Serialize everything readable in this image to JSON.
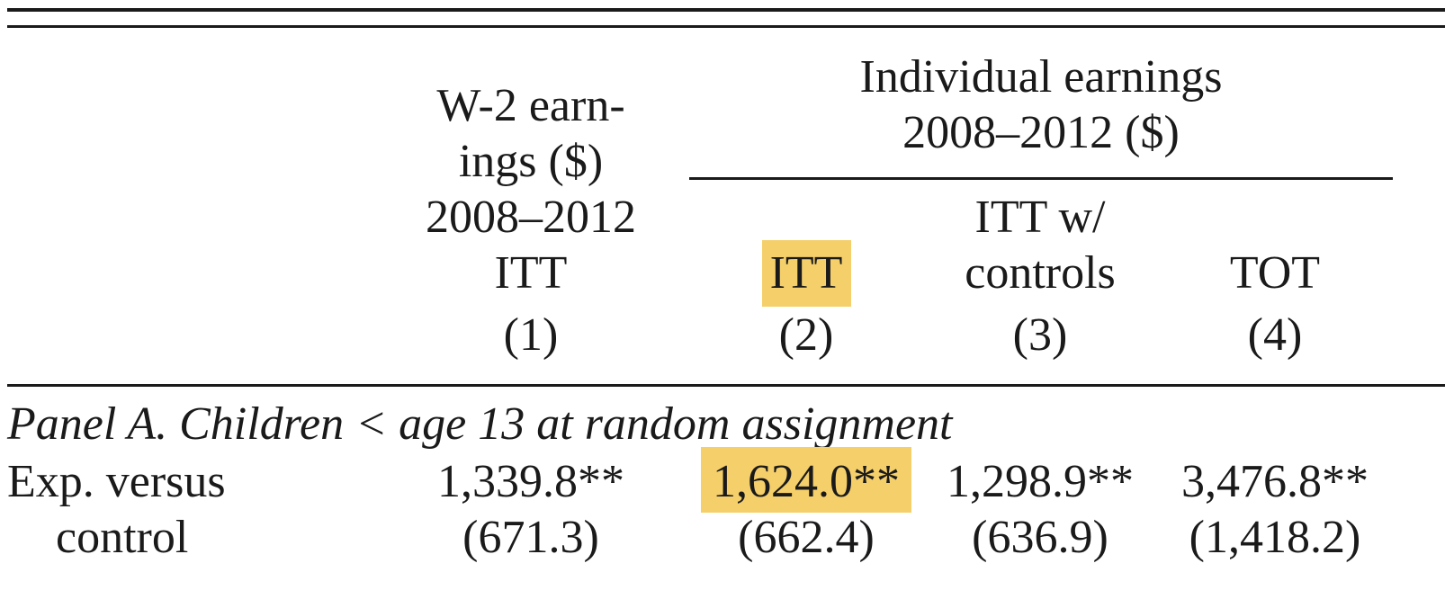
{
  "header": {
    "col1": {
      "lines": [
        "W-2 earn-",
        "ings ($)",
        "2008–2012",
        "ITT"
      ],
      "number": "(1)"
    },
    "group": {
      "line1": "Individual earnings",
      "line2": "2008–2012 ($)"
    },
    "col2": {
      "label": "ITT",
      "number": "(2)"
    },
    "col3": {
      "lines": [
        "ITT w/",
        "controls"
      ],
      "number": "(3)"
    },
    "col4": {
      "label": "TOT",
      "number": "(4)"
    }
  },
  "panel_a": {
    "title": "Panel A. Children < age 13 at random assignment",
    "row": {
      "label_line1": "Exp. versus",
      "label_line2": "control",
      "estimates": [
        "1,339.8**",
        "1,624.0**",
        "1,298.9**",
        "3,476.8**"
      ],
      "std_errors": [
        "(671.3)",
        "(662.4)",
        "(636.9)",
        "(1,418.2)"
      ]
    }
  },
  "colors": {
    "highlight": "#f5cf6a",
    "text": "#1a1a1a"
  }
}
